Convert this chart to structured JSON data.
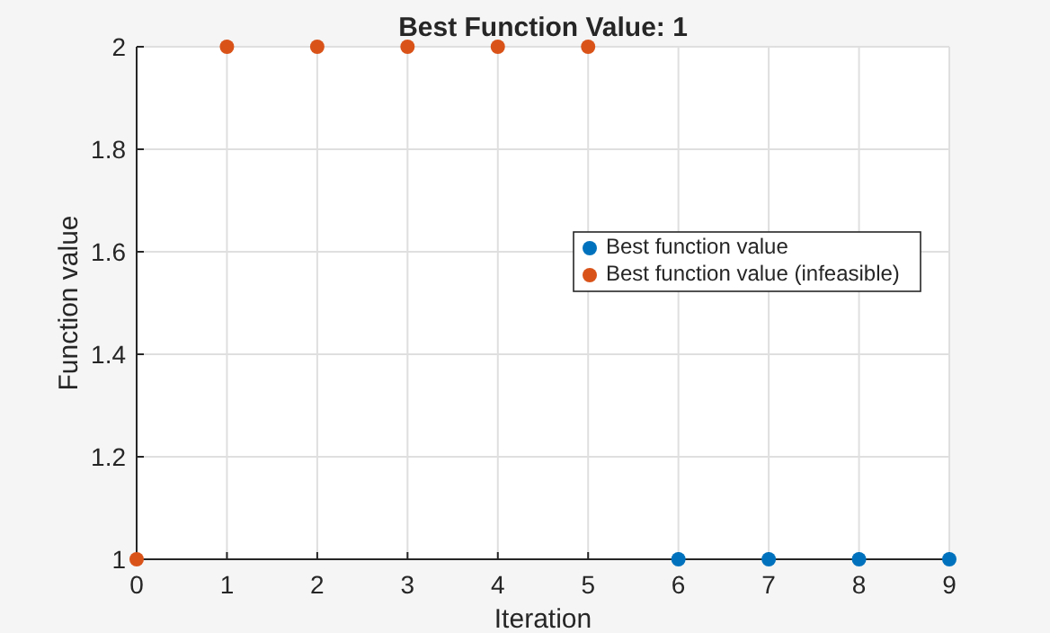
{
  "chart_data": {
    "type": "scatter",
    "title": "Best Function Value: 1",
    "xlabel": "Iteration",
    "ylabel": "Function value",
    "xlim": [
      0,
      9
    ],
    "xticks": [
      0,
      1,
      2,
      3,
      4,
      5,
      6,
      7,
      8,
      9
    ],
    "ylim": [
      1,
      2
    ],
    "yticks": [
      1,
      1.2,
      1.4,
      1.6,
      1.8,
      2
    ],
    "grid": true,
    "legend": "right",
    "marker": "circle",
    "series": [
      {
        "name": "Best function value",
        "color": "#0072bd",
        "x": [
          6,
          7,
          8,
          9
        ],
        "values": [
          1,
          1,
          1,
          1
        ]
      },
      {
        "name": "Best function value (infeasible)",
        "color": "#d95319",
        "x": [
          0,
          1,
          2,
          3,
          4,
          5
        ],
        "values": [
          1,
          2,
          2,
          2,
          2,
          2
        ]
      }
    ]
  }
}
